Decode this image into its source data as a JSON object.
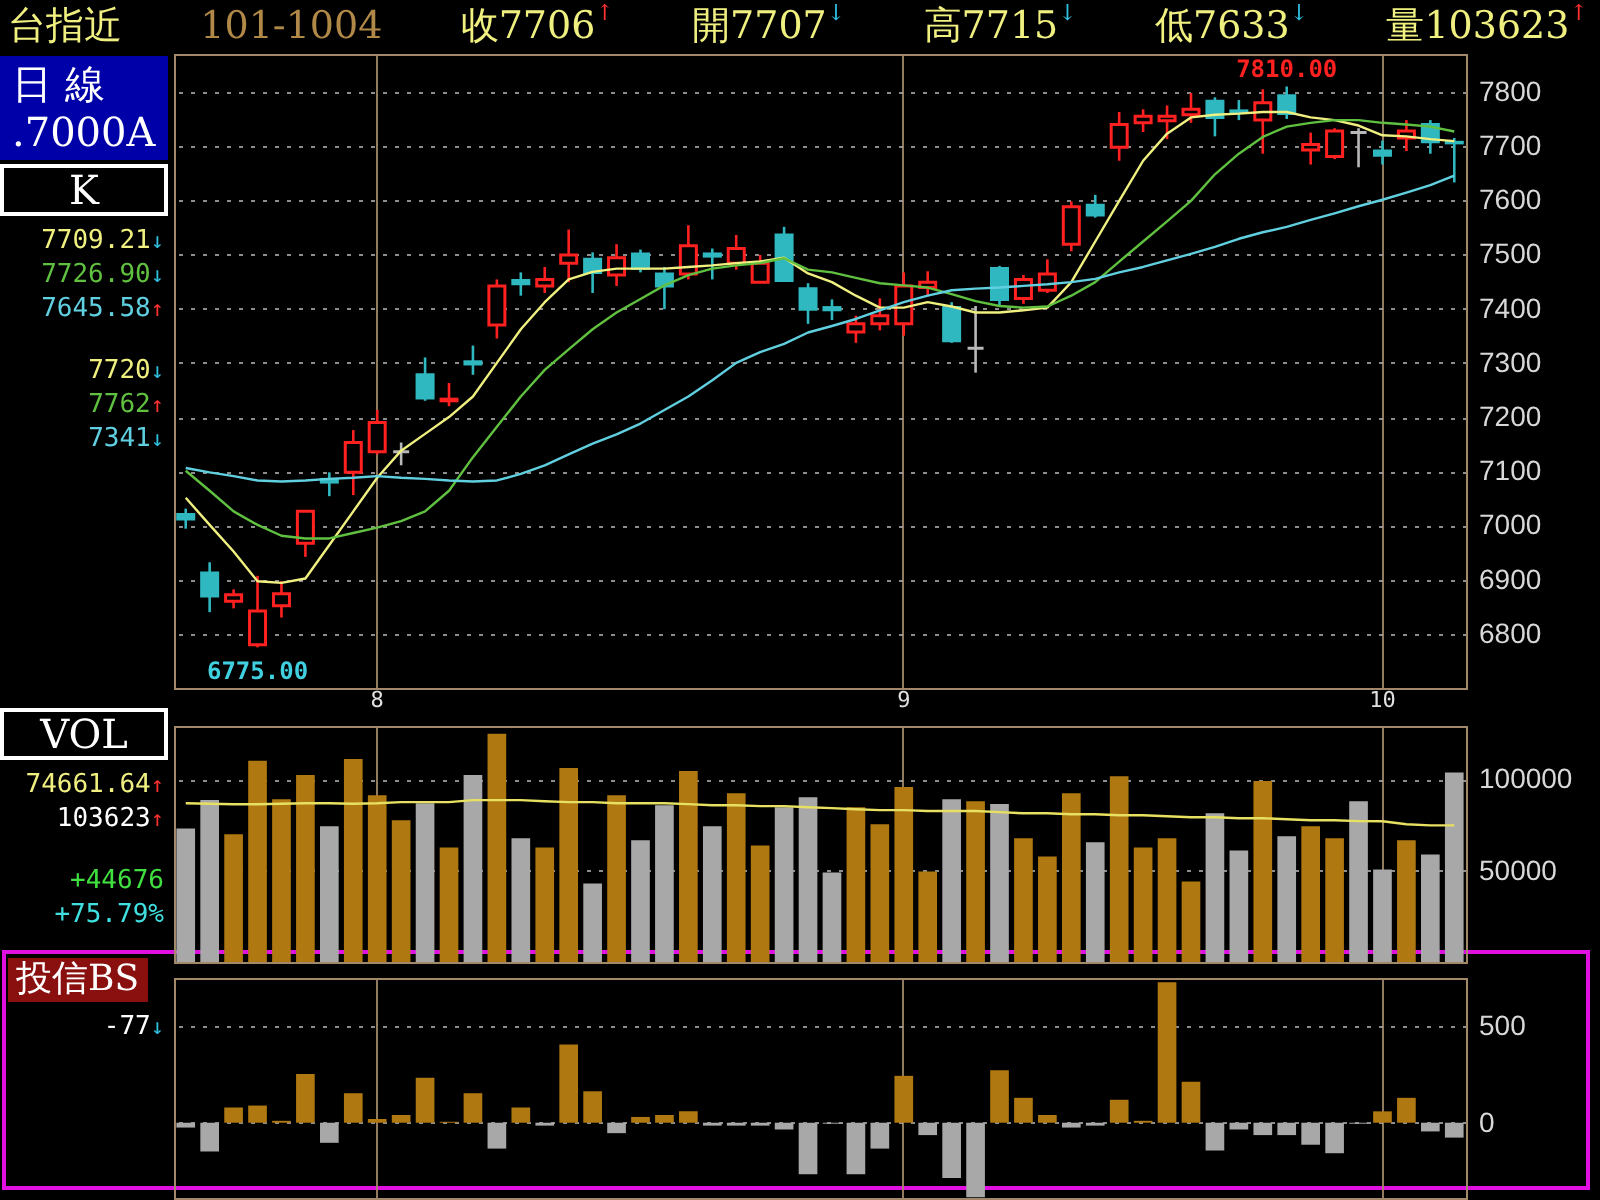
{
  "chart_data": [
    {
      "type": "candlestick",
      "title": "台指近",
      "categories": [
        null,
        null,
        null,
        null,
        null,
        null,
        null,
        null,
        "8",
        null,
        null,
        null,
        null,
        null,
        null,
        null,
        null,
        null,
        null,
        null,
        null,
        null,
        null,
        null,
        null,
        null,
        null,
        null,
        null,
        null,
        "9",
        null,
        null,
        null,
        null,
        null,
        null,
        null,
        null,
        null,
        null,
        null,
        null,
        null,
        null,
        null,
        null,
        null,
        null,
        null,
        "10",
        null,
        null,
        null
      ],
      "ohlc": [
        [
          7020,
          7031,
          6994,
          7012
        ],
        [
          6912,
          6932,
          6840,
          6870
        ],
        [
          6860,
          6882,
          6847,
          6872
        ],
        [
          6780,
          6907,
          6775,
          6842
        ],
        [
          6852,
          6897,
          6830,
          6874
        ],
        [
          6967,
          7026,
          6942,
          7026
        ],
        [
          7085,
          7098,
          7054,
          7080
        ],
        [
          7098,
          7176,
          7056,
          7153
        ],
        [
          7136,
          7213,
          7131,
          7190
        ],
        [
          7136,
          7153,
          7111,
          7136
        ],
        [
          7278,
          7310,
          7230,
          7235
        ],
        [
          7230,
          7263,
          7220,
          7233
        ],
        [
          7302,
          7332,
          7278,
          7298
        ],
        [
          7370,
          7454,
          7345,
          7442
        ],
        [
          7452,
          7467,
          7424,
          7446
        ],
        [
          7442,
          7477,
          7429,
          7454
        ],
        [
          7484,
          7546,
          7449,
          7499
        ],
        [
          7491,
          7504,
          7429,
          7467
        ],
        [
          7462,
          7519,
          7442,
          7494
        ],
        [
          7501,
          7509,
          7467,
          7474
        ],
        [
          7464,
          7477,
          7399,
          7442
        ],
        [
          7464,
          7554,
          7454,
          7516
        ],
        [
          7501,
          7511,
          7454,
          7497
        ],
        [
          7484,
          7536,
          7472,
          7511
        ],
        [
          7449,
          7499,
          7447,
          7484
        ],
        [
          7536,
          7551,
          7452,
          7452
        ],
        [
          7437,
          7447,
          7372,
          7399
        ],
        [
          7402,
          7417,
          7379,
          7398
        ],
        [
          7357,
          7387,
          7337,
          7372
        ],
        [
          7372,
          7419,
          7360,
          7387
        ],
        [
          7372,
          7467,
          7350,
          7442
        ],
        [
          7439,
          7469,
          7424,
          7449
        ],
        [
          7402,
          7412,
          7337,
          7341
        ],
        [
          7327,
          7405,
          7282,
          7327
        ],
        [
          7474,
          7479,
          7404,
          7417
        ],
        [
          7419,
          7462,
          7409,
          7454
        ],
        [
          7434,
          7491,
          7429,
          7464
        ],
        [
          7519,
          7598,
          7506,
          7588
        ],
        [
          7591,
          7610,
          7568,
          7573
        ],
        [
          7698,
          7763,
          7673,
          7740
        ],
        [
          7743,
          7768,
          7726,
          7755
        ],
        [
          7747,
          7775,
          7713,
          7755
        ],
        [
          7758,
          7798,
          7743,
          7768
        ],
        [
          7783,
          7790,
          7718,
          7753
        ],
        [
          7765,
          7785,
          7748,
          7762
        ],
        [
          7748,
          7805,
          7686,
          7780
        ],
        [
          7793,
          7810,
          7750,
          7760
        ],
        [
          7693,
          7725,
          7666,
          7703
        ],
        [
          7681,
          7733,
          7676,
          7728
        ],
        [
          7725,
          7733,
          7661,
          7725
        ],
        [
          7691,
          7710,
          7666,
          7683
        ],
        [
          7715,
          7748,
          7691,
          7728
        ],
        [
          7740,
          7748,
          7686,
          7708
        ],
        [
          7707,
          7715,
          7633,
          7706
        ]
      ],
      "colors": [
        "#30b8c0",
        "#30b8c0",
        "#ff2020",
        "#ff2020",
        "#ff2020",
        "#ff2020",
        "#30b8c0",
        "#ff2020",
        "#ff2020",
        "#b8b8b8",
        "#30b8c0",
        "#ff2020",
        "#30b8c0",
        "#ff2020",
        "#30b8c0",
        "#ff2020",
        "#ff2020",
        "#30b8c0",
        "#ff2020",
        "#30b8c0",
        "#30b8c0",
        "#ff2020",
        "#30b8c0",
        "#ff2020",
        "#ff2020",
        "#30b8c0",
        "#30b8c0",
        "#30b8c0",
        "#ff2020",
        "#ff2020",
        "#ff2020",
        "#ff2020",
        "#30b8c0",
        "#b8b8b8",
        "#30b8c0",
        "#ff2020",
        "#ff2020",
        "#ff2020",
        "#30b8c0",
        "#ff2020",
        "#ff2020",
        "#ff2020",
        "#ff2020",
        "#30b8c0",
        "#30b8c0",
        "#ff2020",
        "#30b8c0",
        "#ff2020",
        "#ff2020",
        "#b8b8b8",
        "#30b8c0",
        "#ff2020",
        "#30b8c0",
        "#30b8c0"
      ],
      "series": [
        {
          "type": "line",
          "color": "#f0f080",
          "values": [
            7051,
            7001,
            6952,
            6897,
            6894,
            6902,
            6964,
            7026,
            7088,
            7138,
            7169,
            7200,
            7238,
            7300,
            7362,
            7412,
            7454,
            7468,
            7474,
            7474,
            7474,
            7477,
            7480,
            7484,
            7487,
            7494,
            7465,
            7449,
            7424,
            7402,
            7402,
            7412,
            7404,
            7393,
            7393,
            7397,
            7402,
            7449,
            7524,
            7599,
            7673,
            7723,
            7753,
            7758,
            7760,
            7763,
            7763,
            7753,
            7748,
            7738,
            7720,
            7718,
            7713,
            7709.21
          ]
        },
        {
          "type": "line",
          "color": "#60c040",
          "values": [
            7101,
            7064,
            7026,
            7001,
            6981,
            6976,
            6976,
            6986,
            6996,
            7008,
            7026,
            7064,
            7126,
            7182,
            7238,
            7287,
            7325,
            7362,
            7393,
            7418,
            7443,
            7462,
            7474,
            7480,
            7484,
            7493,
            7472,
            7467,
            7457,
            7447,
            7443,
            7439,
            7427,
            7414,
            7405,
            7402,
            7404,
            7424,
            7449,
            7487,
            7524,
            7561,
            7599,
            7648,
            7686,
            7717,
            7736,
            7743,
            7748,
            7748,
            7743,
            7740,
            7736,
            7726.9
          ]
        },
        {
          "type": "line",
          "color": "#60d0e0",
          "values": [
            7106,
            7098,
            7091,
            7083,
            7081,
            7083,
            7086,
            7088,
            7091,
            7088,
            7086,
            7083,
            7081,
            7083,
            7095,
            7111,
            7131,
            7151,
            7168,
            7188,
            7213,
            7238,
            7268,
            7300,
            7320,
            7335,
            7356,
            7368,
            7381,
            7397,
            7412,
            7424,
            7434,
            7437,
            7439,
            7442,
            7445,
            7449,
            7455,
            7467,
            7477,
            7489,
            7501,
            7514,
            7529,
            7541,
            7551,
            7564,
            7576,
            7589,
            7601,
            7614,
            7628,
            7645.58
          ]
        }
      ],
      "ylim": [
        6700,
        7870
      ],
      "yticks": [
        6800,
        6900,
        7000,
        7100,
        7200,
        7300,
        7400,
        7500,
        7600,
        7700,
        7800
      ],
      "grid": true,
      "annotations": [
        "101-1004",
        "收7706↑",
        "開7707↓",
        "高7715↓",
        "低7633↓",
        "量103623↑",
        "日 線",
        ".7000A",
        "K",
        "7709.21↓",
        "7726.90↓",
        "7645.58↑",
        "7720↓",
        "7762↑",
        "7341↓",
        {
          "text": "7810.00",
          "y": 7810
        },
        {
          "text": "6775.00",
          "y": 6775
        }
      ]
    },
    {
      "type": "bar",
      "categories": [
        null,
        null,
        null,
        null,
        null,
        null,
        null,
        null,
        "8",
        null,
        null,
        null,
        null,
        null,
        null,
        null,
        null,
        null,
        null,
        null,
        null,
        null,
        null,
        null,
        null,
        null,
        null,
        null,
        null,
        null,
        "9",
        null,
        null,
        null,
        null,
        null,
        null,
        null,
        null,
        null,
        null,
        null,
        null,
        null,
        null,
        null,
        null,
        null,
        null,
        null,
        "10",
        null,
        null,
        null
      ],
      "series": [
        {
          "type": "bar",
          "colors": [
            "#a8a8a8",
            "#a8a8a8",
            "#b07810",
            "#b07810",
            "#b07810",
            "#b07810",
            "#a8a8a8",
            "#b07810",
            "#b07810",
            "#b07810",
            "#a8a8a8",
            "#b07810",
            "#a8a8a8",
            "#b07810",
            "#a8a8a8",
            "#b07810",
            "#b07810",
            "#a8a8a8",
            "#b07810",
            "#a8a8a8",
            "#a8a8a8",
            "#b07810",
            "#a8a8a8",
            "#b07810",
            "#b07810",
            "#a8a8a8",
            "#a8a8a8",
            "#a8a8a8",
            "#b07810",
            "#b07810",
            "#b07810",
            "#b07810",
            "#a8a8a8",
            "#b07810",
            "#a8a8a8",
            "#b07810",
            "#b07810",
            "#b07810",
            "#a8a8a8",
            "#b07810",
            "#b07810",
            "#b07810",
            "#b07810",
            "#a8a8a8",
            "#a8a8a8",
            "#b07810",
            "#a8a8a8",
            "#b07810",
            "#b07810",
            "#a8a8a8",
            "#a8a8a8",
            "#b07810",
            "#a8a8a8",
            "#a8a8a8"
          ],
          "values": [
            73000,
            88500,
            69800,
            110000,
            89000,
            102200,
            74200,
            111000,
            91200,
            77500,
            86800,
            62600,
            102200,
            124700,
            67600,
            62600,
            106000,
            42900,
            91200,
            66500,
            85700,
            104400,
            74200,
            92300,
            63700,
            84600,
            90100,
            48900,
            84600,
            75300,
            95600,
            49500,
            89000,
            87900,
            86300,
            67600,
            57700,
            92300,
            65400,
            101600,
            62600,
            67600,
            44000,
            81300,
            61000,
            98900,
            68700,
            74200,
            67600,
            87900,
            50500,
            66500,
            58800,
            103623
          ]
        },
        {
          "type": "line",
          "color": "#e8e060",
          "values": [
            86800,
            86500,
            86200,
            86200,
            86500,
            86800,
            86800,
            86500,
            86800,
            87400,
            87400,
            87400,
            88500,
            88500,
            88500,
            87900,
            87400,
            87400,
            86800,
            86800,
            86800,
            86300,
            85700,
            85700,
            85200,
            85200,
            84600,
            84100,
            83500,
            83000,
            83000,
            82500,
            82500,
            82500,
            81900,
            81300,
            81300,
            80800,
            80800,
            80200,
            80200,
            79700,
            79100,
            79100,
            78600,
            78600,
            78000,
            77500,
            77500,
            77000,
            76900,
            75300,
            74700,
            74661.64
          ]
        }
      ],
      "ylim": [
        0,
        129000
      ],
      "yticks": [
        50000,
        100000
      ],
      "grid": true,
      "tick_labels": "y",
      "annotations": [
        "VOL",
        "74661.64↑",
        "103623↑",
        "+44676",
        "+75.79%"
      ]
    },
    {
      "type": "bar",
      "categories": [
        null,
        null,
        null,
        null,
        null,
        null,
        null,
        null,
        "8",
        null,
        null,
        null,
        null,
        null,
        null,
        null,
        null,
        null,
        null,
        null,
        null,
        null,
        null,
        null,
        null,
        null,
        null,
        null,
        null,
        null,
        "9",
        null,
        null,
        null,
        null,
        null,
        null,
        null,
        null,
        null,
        null,
        null,
        null,
        null,
        null,
        null,
        null,
        null,
        null,
        null,
        "10",
        null,
        null,
        null
      ],
      "values": [
        -25,
        -149,
        79,
        89,
        10,
        252,
        -104,
        153,
        20,
        40,
        233,
        5,
        153,
        -134,
        79,
        -15,
        406,
        163,
        -54,
        30,
        40,
        59,
        -15,
        -15,
        -15,
        -35,
        -267,
        -5,
        -267,
        -134,
        243,
        -64,
        -287,
        -386,
        272,
        129,
        40,
        -25,
        -15,
        119,
        10,
        728,
        213,
        -144,
        -35,
        -64,
        -64,
        -114,
        -158,
        -5,
        59,
        129,
        -45,
        -77
      ],
      "colors": [
        "#a8a8a8",
        "#a8a8a8",
        "#b07810",
        "#b07810",
        "#b07810",
        "#b07810",
        "#a8a8a8",
        "#b07810",
        "#b07810",
        "#b07810",
        "#b07810",
        "#b07810",
        "#b07810",
        "#a8a8a8",
        "#b07810",
        "#a8a8a8",
        "#b07810",
        "#b07810",
        "#a8a8a8",
        "#b07810",
        "#b07810",
        "#b07810",
        "#a8a8a8",
        "#a8a8a8",
        "#a8a8a8",
        "#a8a8a8",
        "#a8a8a8",
        "#a8a8a8",
        "#a8a8a8",
        "#a8a8a8",
        "#b07810",
        "#a8a8a8",
        "#a8a8a8",
        "#a8a8a8",
        "#b07810",
        "#b07810",
        "#b07810",
        "#a8a8a8",
        "#a8a8a8",
        "#b07810",
        "#b07810",
        "#b07810",
        "#b07810",
        "#a8a8a8",
        "#a8a8a8",
        "#a8a8a8",
        "#a8a8a8",
        "#a8a8a8",
        "#a8a8a8",
        "#a8a8a8",
        "#b07810",
        "#b07810",
        "#a8a8a8",
        "#a8a8a8"
      ],
      "ylim": [
        -390,
        750
      ],
      "yticks": [
        0,
        500
      ],
      "grid": true,
      "tick_labels": "y",
      "annotations": [
        "投信BS",
        "-77↓"
      ]
    }
  ]
}
